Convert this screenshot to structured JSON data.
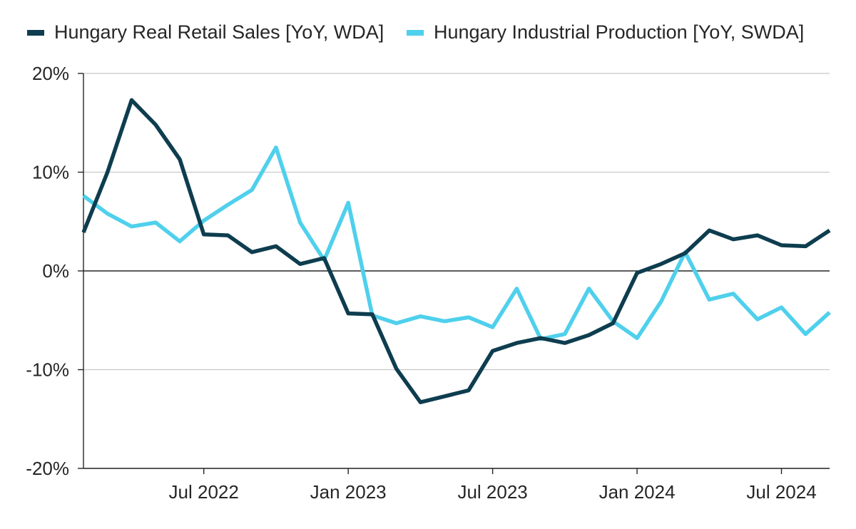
{
  "chart_data": {
    "type": "line",
    "title": "",
    "xlabel": "",
    "ylabel": "",
    "ylim": [
      -20,
      20
    ],
    "yticks": [
      20,
      10,
      0,
      -10,
      -20
    ],
    "ytick_labels": [
      "20%",
      "10%",
      "0%",
      "-10%",
      "-20%"
    ],
    "xtick_labels": [
      "Jul 2022",
      "Jan 2023",
      "Jul 2023",
      "Jan 2024",
      "Jul 2024"
    ],
    "xtick_indices": [
      5,
      11,
      17,
      23,
      29
    ],
    "grid": "horizontal",
    "legend_position": "top",
    "x": [
      "2022-02",
      "2022-03",
      "2022-04",
      "2022-05",
      "2022-06",
      "2022-07",
      "2022-08",
      "2022-09",
      "2022-10",
      "2022-11",
      "2022-12",
      "2023-01",
      "2023-02",
      "2023-03",
      "2023-04",
      "2023-05",
      "2023-06",
      "2023-07",
      "2023-08",
      "2023-09",
      "2023-10",
      "2023-11",
      "2023-12",
      "2024-01",
      "2024-02",
      "2024-03",
      "2024-04",
      "2024-05",
      "2024-06",
      "2024-07",
      "2024-08",
      "2024-09"
    ],
    "series": [
      {
        "name": "Hungary Real Retail Sales [YoY, WDA]",
        "color": "#0e3d4f",
        "values": [
          3.9,
          10.0,
          17.3,
          14.8,
          11.3,
          3.7,
          3.6,
          1.9,
          2.5,
          0.7,
          1.3,
          -4.3,
          -4.4,
          -9.9,
          -13.3,
          -12.7,
          -12.1,
          -8.1,
          -7.3,
          -6.8,
          -7.3,
          -6.5,
          -5.3,
          -0.2,
          0.7,
          1.8,
          4.1,
          3.2,
          3.6,
          2.6,
          2.5,
          4.1
        ]
      },
      {
        "name": "Hungary Industrial Production [YoY, SWDA]",
        "color": "#4fd0ec",
        "values": [
          7.6,
          5.8,
          4.5,
          4.9,
          3.0,
          5.1,
          6.7,
          8.2,
          12.5,
          4.9,
          1.1,
          6.9,
          -4.5,
          -5.3,
          -4.6,
          -5.1,
          -4.7,
          -5.7,
          -1.8,
          -6.9,
          -6.4,
          -1.8,
          -5.1,
          -6.8,
          -3.1,
          1.9,
          -2.9,
          -2.3,
          -4.9,
          -3.7,
          -6.4,
          -4.2
        ]
      }
    ]
  }
}
